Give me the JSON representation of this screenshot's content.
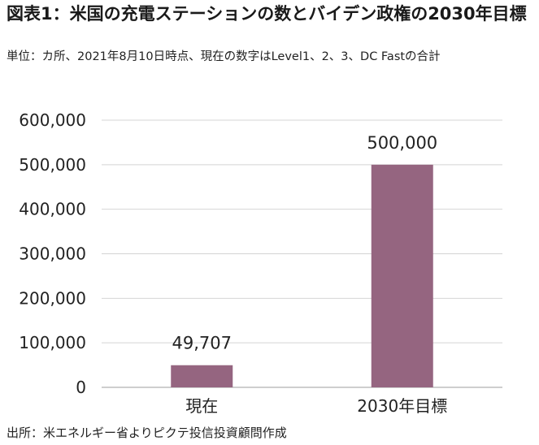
{
  "header": {
    "title": "図表1：米国の充電ステーションの数とバイデン政権の2030年目標",
    "subtitle": "単位：カ所、2021年8月10日時点、現在の数字はLevel1、2、3、DC Fastの合計"
  },
  "footer": {
    "source": "出所：米エネルギー省よりピクテ投信投資顧問作成"
  },
  "colors": {
    "bar": "#956580",
    "grid": "#d4d4d4",
    "axis": "#bdbdbd"
  },
  "chart_data": {
    "type": "bar",
    "title": "図表1：米国の充電ステーションの数とバイデン政権の2030年目標",
    "categories": [
      "現在",
      "2030年目標"
    ],
    "values": [
      49707,
      500000
    ],
    "data_labels": [
      "49,707",
      "500,000"
    ],
    "ylim": [
      0,
      600000
    ],
    "yticks": [
      "0",
      "100,000",
      "200,000",
      "300,000",
      "400,000",
      "500,000",
      "600,000"
    ],
    "grid": true,
    "legend": "none"
  }
}
